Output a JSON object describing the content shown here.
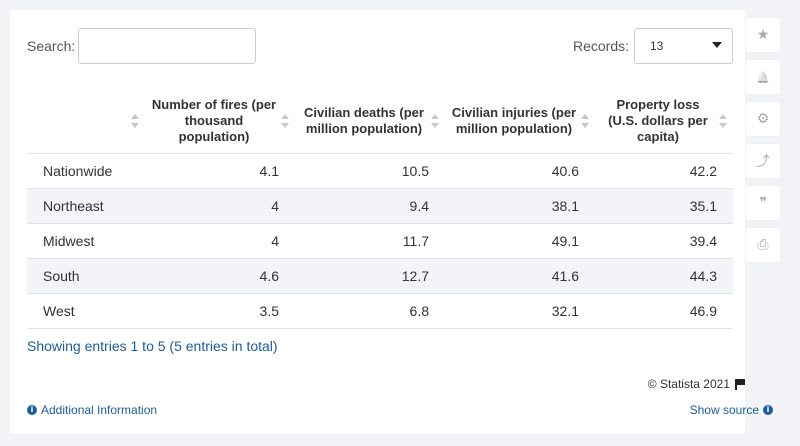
{
  "search": {
    "label": "Search:",
    "value": "",
    "placeholder": ""
  },
  "records": {
    "label": "Records:",
    "value": "13"
  },
  "table": {
    "headers": [
      "",
      "Number of fires (per thousand population)",
      "Civilian deaths (per million population)",
      "Civilian injuries (per million population)",
      "Property loss (U.S. dollars per capita)"
    ],
    "rows": [
      {
        "region": "Nationwide",
        "fires": "4.1",
        "deaths": "10.5",
        "injuries": "40.6",
        "loss": "42.2"
      },
      {
        "region": "Northeast",
        "fires": "4",
        "deaths": "9.4",
        "injuries": "38.1",
        "loss": "35.1"
      },
      {
        "region": "Midwest",
        "fires": "4",
        "deaths": "11.7",
        "injuries": "49.1",
        "loss": "39.4"
      },
      {
        "region": "South",
        "fires": "4.6",
        "deaths": "12.7",
        "injuries": "41.6",
        "loss": "44.3"
      },
      {
        "region": "West",
        "fires": "3.5",
        "deaths": "6.8",
        "injuries": "32.1",
        "loss": "46.9"
      }
    ]
  },
  "footer": {
    "showing": "Showing entries 1 to 5 (5 entries in total)",
    "copyright": "© Statista 2021",
    "additional_info": "Additional Information",
    "show_source": "Show source"
  },
  "sidebar": {
    "icons": [
      "star-icon",
      "bell-icon",
      "gear-icon",
      "share-icon",
      "quote-icon",
      "print-icon"
    ],
    "glyphs": [
      "★",
      "🔔",
      "⚙",
      "⤴",
      "❞",
      "⎙"
    ]
  },
  "colors": {
    "link": "#1d5b9b",
    "stripe": "#f2f4f7",
    "background": "#f1f3f6",
    "icon": "#a6adb7"
  }
}
